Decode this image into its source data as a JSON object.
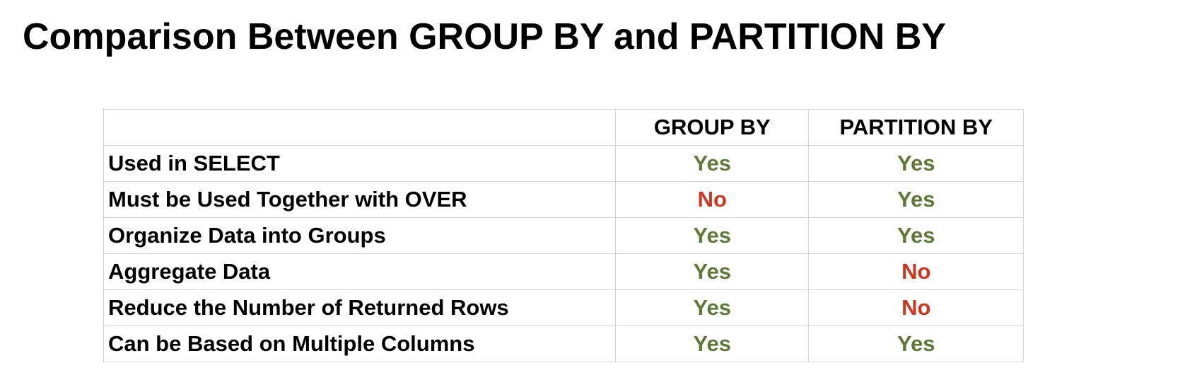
{
  "title": "Comparison Between GROUP BY and PARTITION BY",
  "table": {
    "header": [
      "GROUP BY",
      "PARTITION BY"
    ],
    "rows": [
      [
        "Used in SELECT",
        "Yes",
        "Yes"
      ],
      [
        "Must be Used Together with OVER",
        "No",
        "Yes"
      ],
      [
        "Organize Data into Groups",
        "Yes",
        "Yes"
      ],
      [
        "Aggregate Data",
        "Yes",
        "No"
      ],
      [
        "Reduce the Number of Returned Rows",
        "Yes",
        "No"
      ],
      [
        "Can be Based on Multiple Columns",
        "Yes",
        "Yes"
      ]
    ]
  }
}
